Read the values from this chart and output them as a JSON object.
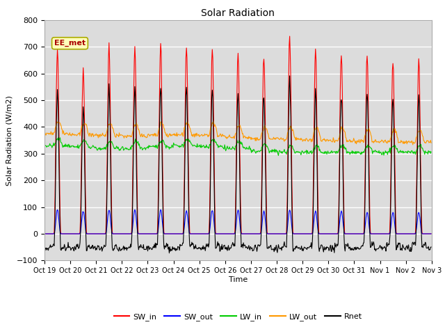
{
  "title": "Solar Radiation",
  "ylabel": "Solar Radiation (W/m2)",
  "xlabel": "Time",
  "ylim": [
    -100,
    800
  ],
  "yticks": [
    -100,
    0,
    100,
    200,
    300,
    400,
    500,
    600,
    700,
    800
  ],
  "annotation": "EE_met",
  "colors": {
    "SW_in": "#ff0000",
    "SW_out": "#0000ff",
    "LW_in": "#00cc00",
    "LW_out": "#ff9900",
    "Rnet": "#000000"
  },
  "bg_color": "#dcdcdc",
  "n_days": 15,
  "dt_hours": 0.5,
  "sw_peaks": [
    695,
    620,
    705,
    700,
    700,
    695,
    690,
    670,
    670,
    740,
    680,
    680,
    670,
    655,
    650
  ],
  "sw_out_peaks": [
    90,
    85,
    90,
    90,
    90,
    85,
    90,
    90,
    85,
    90,
    85,
    85,
    80,
    80,
    80
  ],
  "lw_in_base": [
    330,
    325,
    320,
    320,
    325,
    330,
    325,
    320,
    310,
    305,
    305,
    305,
    305,
    305,
    305
  ],
  "lw_out_base": [
    375,
    370,
    368,
    365,
    368,
    370,
    368,
    360,
    355,
    355,
    350,
    348,
    345,
    345,
    345
  ],
  "tick_labels": [
    "Oct 19",
    "Oct 20",
    "Oct 21",
    "Oct 22",
    "Oct 23",
    "Oct 24",
    "Oct 25",
    "Oct 26",
    "Oct 27",
    "Oct 28",
    "Oct 29",
    "Oct 30",
    "Oct 31",
    "Nov 1",
    "Nov 2",
    "Nov 3"
  ],
  "figsize": [
    6.4,
    4.8
  ],
  "dpi": 100
}
